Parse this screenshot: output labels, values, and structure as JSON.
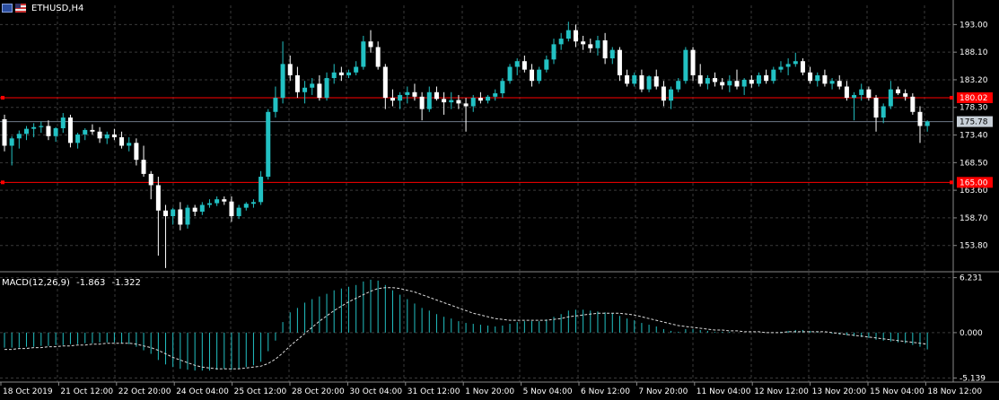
{
  "header": {
    "symbol": "ETHUSD,H4"
  },
  "price_axis": {
    "ticks": [
      "193.00",
      "188.10",
      "183.20",
      "178.30",
      "173.40",
      "168.50",
      "163.60",
      "158.70",
      "153.80"
    ],
    "tick_values": [
      193.0,
      188.1,
      183.2,
      178.3,
      173.4,
      168.5,
      163.6,
      158.7,
      153.8
    ],
    "range": [
      149.3,
      196.4
    ],
    "levels": [
      {
        "label": "180.02",
        "value": 180.02,
        "color": "#ff0000"
      },
      {
        "label": "165.00",
        "value": 165.0,
        "color": "#ff0000"
      }
    ],
    "current": {
      "label": "175.78",
      "value": 175.78,
      "color": "#8c98a6"
    }
  },
  "macd": {
    "label": "MACD(12,26,9)",
    "main_value": "-1.863",
    "signal_value": "-1.322",
    "ticks": [
      "6.231",
      "0.000",
      "-5.139"
    ],
    "tick_values": [
      6.231,
      0.0,
      -5.139
    ],
    "range": [
      -5.6,
      6.8
    ]
  },
  "time_axis": {
    "labels": [
      "18 Oct 2019",
      "21 Oct 12:00",
      "22 Oct 20:00",
      "24 Oct 04:00",
      "25 Oct 12:00",
      "28 Oct 20:00",
      "30 Oct 04:00",
      "31 Oct 12:00",
      "1 Nov 20:00",
      "5 Nov 04:00",
      "6 Nov 12:00",
      "7 Nov 20:00",
      "11 Nov 04:00",
      "12 Nov 12:00",
      "13 Nov 20:00",
      "15 Nov 04:00",
      "18 Nov 12:00"
    ]
  },
  "colors": {
    "bull": "#22c1c3",
    "bear": "#ffffff",
    "grid": "#3a3a3a",
    "macd_hist": "#22c1c3",
    "macd_signal": "#dddddd"
  },
  "chart_data": [
    {
      "type": "candlestick",
      "title": "ETHUSD,H4",
      "ylim": [
        149.3,
        196.4
      ],
      "hlines": [
        180.02,
        165.0
      ],
      "ohlc": [
        [
          176.2,
          177.0,
          170.5,
          171.5
        ],
        [
          171.5,
          173.2,
          168.0,
          172.8
        ],
        [
          172.8,
          174.2,
          171.0,
          173.6
        ],
        [
          173.6,
          175.0,
          172.5,
          174.5
        ],
        [
          174.5,
          175.5,
          173.0,
          174.8
        ],
        [
          174.8,
          175.8,
          173.8,
          175.0
        ],
        [
          175.0,
          176.0,
          172.5,
          173.2
        ],
        [
          173.2,
          174.8,
          172.2,
          174.6
        ],
        [
          174.6,
          177.3,
          173.8,
          176.5
        ],
        [
          176.5,
          177.0,
          171.2,
          172.0
        ],
        [
          172.0,
          173.8,
          171.0,
          173.5
        ],
        [
          173.5,
          174.6,
          172.5,
          174.3
        ],
        [
          174.3,
          175.3,
          173.5,
          174.0
        ],
        [
          174.0,
          174.8,
          172.0,
          172.8
        ],
        [
          172.8,
          174.0,
          171.8,
          173.5
        ],
        [
          173.5,
          174.5,
          172.5,
          173.0
        ],
        [
          173.0,
          174.0,
          171.0,
          171.5
        ],
        [
          171.5,
          173.0,
          170.5,
          172.0
        ],
        [
          172.0,
          172.8,
          168.0,
          169.0
        ],
        [
          169.0,
          171.5,
          166.0,
          166.5
        ],
        [
          166.5,
          167.0,
          162.0,
          164.5
        ],
        [
          164.5,
          166.0,
          152.0,
          160.0
        ],
        [
          160.0,
          161.0,
          149.8,
          159.0
        ],
        [
          159.0,
          160.5,
          157.5,
          160.2
        ],
        [
          160.2,
          161.5,
          156.5,
          157.5
        ],
        [
          157.5,
          161.0,
          156.8,
          160.5
        ],
        [
          160.5,
          161.0,
          159.0,
          159.8
        ],
        [
          159.8,
          161.5,
          159.2,
          161.0
        ],
        [
          161.0,
          162.0,
          160.5,
          161.3
        ],
        [
          161.3,
          162.5,
          160.8,
          162.0
        ],
        [
          162.0,
          162.5,
          161.0,
          161.6
        ],
        [
          161.6,
          162.5,
          158.0,
          159.0
        ],
        [
          159.0,
          161.0,
          158.5,
          160.5
        ],
        [
          160.5,
          161.5,
          160.0,
          161.2
        ],
        [
          161.2,
          162.0,
          160.5,
          161.5
        ],
        [
          161.5,
          167.0,
          161.0,
          166.0
        ],
        [
          166.0,
          178.0,
          165.5,
          177.5
        ],
        [
          177.5,
          182.0,
          176.5,
          180.0
        ],
        [
          180.0,
          190.0,
          179.0,
          186.0
        ],
        [
          186.0,
          187.5,
          183.0,
          184.0
        ],
        [
          184.0,
          185.5,
          180.0,
          181.0
        ],
        [
          181.0,
          183.0,
          179.0,
          181.8
        ],
        [
          181.8,
          183.5,
          180.5,
          182.5
        ],
        [
          182.5,
          184.0,
          179.5,
          180.0
        ],
        [
          180.0,
          184.5,
          179.5,
          183.5
        ],
        [
          183.5,
          186.0,
          182.5,
          184.5
        ],
        [
          184.5,
          185.5,
          183.0,
          184.0
        ],
        [
          184.0,
          185.0,
          183.5,
          184.5
        ],
        [
          184.5,
          186.5,
          184.0,
          185.5
        ],
        [
          185.5,
          191.0,
          185.0,
          190.0
        ],
        [
          190.0,
          192.0,
          188.0,
          189.0
        ],
        [
          189.0,
          190.0,
          185.0,
          185.5
        ],
        [
          185.5,
          186.0,
          178.0,
          180.0
        ],
        [
          180.0,
          181.5,
          178.5,
          179.5
        ],
        [
          179.5,
          181.0,
          178.0,
          180.5
        ],
        [
          180.5,
          182.0,
          179.0,
          181.0
        ],
        [
          181.0,
          182.5,
          179.5,
          180.2
        ],
        [
          180.2,
          181.0,
          176.0,
          178.0
        ],
        [
          178.0,
          182.0,
          177.5,
          181.0
        ],
        [
          181.0,
          182.0,
          179.5,
          179.8
        ],
        [
          179.8,
          181.0,
          177.0,
          179.2
        ],
        [
          179.2,
          181.0,
          178.0,
          179.6
        ],
        [
          179.6,
          180.5,
          178.0,
          179.0
        ],
        [
          179.0,
          180.0,
          174.0,
          178.5
        ],
        [
          178.5,
          180.5,
          177.5,
          180.0
        ],
        [
          180.0,
          181.0,
          179.0,
          179.5
        ],
        [
          179.5,
          180.5,
          179.0,
          180.2
        ],
        [
          180.2,
          181.5,
          179.5,
          180.8
        ],
        [
          180.8,
          183.5,
          180.0,
          183.0
        ],
        [
          183.0,
          186.0,
          182.5,
          185.5
        ],
        [
          185.5,
          187.0,
          184.0,
          186.5
        ],
        [
          186.5,
          187.5,
          184.5,
          185.0
        ],
        [
          185.0,
          186.0,
          182.0,
          183.0
        ],
        [
          183.0,
          185.5,
          182.5,
          185.0
        ],
        [
          185.0,
          187.5,
          184.5,
          186.8
        ],
        [
          186.8,
          190.5,
          186.0,
          189.5
        ],
        [
          189.5,
          191.5,
          188.5,
          190.5
        ],
        [
          190.5,
          193.5,
          190.0,
          192.0
        ],
        [
          192.0,
          193.0,
          189.0,
          190.0
        ],
        [
          190.0,
          191.0,
          188.5,
          189.5
        ],
        [
          189.5,
          190.5,
          188.0,
          188.8
        ],
        [
          188.8,
          191.0,
          187.5,
          190.2
        ],
        [
          190.2,
          191.5,
          186.0,
          187.0
        ],
        [
          187.0,
          189.0,
          186.0,
          188.5
        ],
        [
          188.5,
          189.0,
          183.0,
          184.0
        ],
        [
          184.0,
          185.0,
          182.0,
          182.5
        ],
        [
          182.5,
          184.5,
          182.0,
          184.0
        ],
        [
          184.0,
          185.0,
          181.0,
          181.5
        ],
        [
          181.5,
          184.0,
          181.0,
          183.8
        ],
        [
          183.8,
          185.0,
          181.5,
          182.0
        ],
        [
          182.0,
          183.0,
          178.5,
          179.5
        ],
        [
          179.5,
          182.0,
          178.0,
          181.5
        ],
        [
          181.5,
          183.5,
          181.0,
          183.0
        ],
        [
          183.0,
          189.0,
          182.5,
          188.5
        ],
        [
          188.5,
          189.0,
          183.0,
          184.0
        ],
        [
          184.0,
          186.0,
          182.0,
          182.5
        ],
        [
          182.5,
          184.0,
          181.5,
          183.5
        ],
        [
          183.5,
          184.5,
          182.0,
          182.8
        ],
        [
          182.8,
          183.5,
          181.5,
          182.2
        ],
        [
          182.2,
          184.0,
          181.0,
          183.0
        ],
        [
          183.0,
          185.0,
          181.5,
          182.0
        ],
        [
          182.0,
          183.5,
          180.5,
          183.2
        ],
        [
          183.2,
          184.0,
          181.8,
          182.5
        ],
        [
          182.5,
          184.5,
          182.0,
          184.0
        ],
        [
          184.0,
          185.0,
          182.5,
          183.0
        ],
        [
          183.0,
          185.5,
          182.5,
          185.0
        ],
        [
          185.0,
          186.5,
          184.5,
          185.5
        ],
        [
          185.5,
          187.0,
          184.0,
          186.0
        ],
        [
          186.0,
          188.0,
          185.5,
          186.5
        ],
        [
          186.5,
          187.0,
          184.0,
          184.5
        ],
        [
          184.5,
          185.5,
          182.5,
          183.0
        ],
        [
          183.0,
          184.5,
          182.0,
          184.0
        ],
        [
          184.0,
          185.0,
          182.0,
          182.5
        ],
        [
          182.5,
          183.5,
          181.5,
          183.0
        ],
        [
          183.0,
          184.0,
          181.5,
          182.0
        ],
        [
          182.0,
          183.0,
          179.5,
          180.0
        ],
        [
          180.0,
          181.0,
          176.0,
          180.5
        ],
        [
          180.5,
          182.5,
          179.5,
          181.5
        ],
        [
          181.5,
          182.0,
          179.5,
          180.0
        ],
        [
          180.0,
          180.5,
          174.0,
          176.5
        ],
        [
          176.5,
          179.0,
          175.5,
          178.5
        ],
        [
          178.5,
          183.0,
          178.0,
          181.5
        ],
        [
          181.5,
          182.0,
          180.5,
          180.8
        ],
        [
          180.8,
          181.5,
          179.5,
          180.2
        ],
        [
          180.2,
          180.8,
          177.0,
          177.5
        ],
        [
          177.5,
          178.5,
          172.0,
          175.0
        ],
        [
          175.0,
          176.0,
          174.0,
          175.8
        ]
      ]
    },
    {
      "type": "bar",
      "title": "MACD(12,26,9)",
      "ylim": [
        -5.6,
        6.8
      ],
      "series": [
        {
          "name": "MACD",
          "values": [
            -1.7,
            -1.7,
            -1.7,
            -1.6,
            -1.6,
            -1.5,
            -1.5,
            -1.4,
            -1.4,
            -1.3,
            -1.3,
            -1.2,
            -1.2,
            -1.1,
            -1.1,
            -1.1,
            -1.2,
            -1.3,
            -1.6,
            -2.0,
            -2.4,
            -3.1,
            -3.6,
            -3.9,
            -4.1,
            -4.2,
            -4.3,
            -4.3,
            -4.3,
            -4.2,
            -4.1,
            -4.2,
            -4.1,
            -3.9,
            -3.7,
            -3.3,
            -2.1,
            -0.9,
            1.2,
            2.3,
            2.8,
            3.4,
            3.8,
            4.1,
            4.4,
            4.8,
            5.0,
            5.2,
            5.4,
            5.8,
            6.0,
            5.9,
            5.4,
            4.8,
            4.3,
            3.8,
            3.3,
            2.8,
            2.5,
            2.1,
            1.8,
            1.6,
            1.3,
            1.1,
            1.0,
            0.9,
            0.8,
            0.7,
            0.8,
            1.0,
            1.2,
            1.3,
            1.3,
            1.3,
            1.5,
            1.8,
            2.1,
            2.5,
            2.6,
            2.6,
            2.5,
            2.4,
            2.3,
            2.2,
            1.9,
            1.6,
            1.4,
            1.1,
            0.9,
            0.7,
            0.4,
            0.2,
            0.1,
            0.4,
            0.4,
            0.3,
            0.2,
            0.1,
            0.1,
            0.1,
            0.0,
            0.0,
            0.0,
            0.0,
            0.0,
            0.0,
            0.1,
            0.2,
            0.3,
            0.3,
            0.2,
            0.1,
            0.0,
            -0.1,
            -0.2,
            -0.3,
            -0.4,
            -0.5,
            -0.6,
            -0.8,
            -0.9,
            -1.0,
            -1.1,
            -1.2,
            -1.4,
            -1.6,
            -1.9
          ]
        },
        {
          "name": "Signal",
          "values": [
            -1.9,
            -1.9,
            -1.8,
            -1.8,
            -1.7,
            -1.7,
            -1.6,
            -1.6,
            -1.5,
            -1.5,
            -1.4,
            -1.4,
            -1.3,
            -1.3,
            -1.2,
            -1.2,
            -1.2,
            -1.2,
            -1.3,
            -1.5,
            -1.7,
            -2.0,
            -2.4,
            -2.8,
            -3.1,
            -3.4,
            -3.7,
            -3.9,
            -4.0,
            -4.1,
            -4.1,
            -4.1,
            -4.1,
            -4.0,
            -3.9,
            -3.8,
            -3.5,
            -3.0,
            -2.3,
            -1.5,
            -0.8,
            -0.1,
            0.6,
            1.3,
            1.9,
            2.5,
            3.0,
            3.5,
            3.9,
            4.3,
            4.7,
            5.0,
            5.1,
            5.1,
            5.0,
            4.8,
            4.6,
            4.3,
            4.0,
            3.7,
            3.4,
            3.1,
            2.8,
            2.5,
            2.2,
            2.0,
            1.8,
            1.6,
            1.5,
            1.4,
            1.4,
            1.4,
            1.4,
            1.4,
            1.4,
            1.5,
            1.6,
            1.8,
            1.9,
            2.0,
            2.1,
            2.2,
            2.2,
            2.2,
            2.2,
            2.1,
            2.0,
            1.8,
            1.6,
            1.4,
            1.2,
            1.0,
            0.8,
            0.7,
            0.6,
            0.5,
            0.4,
            0.3,
            0.3,
            0.2,
            0.2,
            0.1,
            0.1,
            0.1,
            0.0,
            0.0,
            0.0,
            0.1,
            0.1,
            0.1,
            0.1,
            0.1,
            0.1,
            0.0,
            -0.1,
            -0.2,
            -0.3,
            -0.4,
            -0.5,
            -0.6,
            -0.7,
            -0.8,
            -0.9,
            -1.0,
            -1.1,
            -1.2,
            -1.3
          ]
        }
      ]
    }
  ]
}
